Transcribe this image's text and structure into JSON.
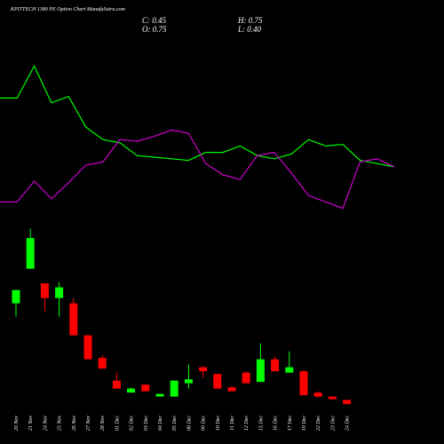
{
  "chart_data": {
    "type": "candlestick",
    "title": "KPITTECH 1380  PE Option Chart ManafaSutra.com",
    "ohlc_labels": {
      "close": "C: 0.45",
      "high": "H: 0.75",
      "open": "O: 0.75",
      "low": "L: 0.40"
    },
    "categories": [
      "20 Nov",
      "21 Nov",
      "24 Nov",
      "25 Nov",
      "26 Nov",
      "27 Nov",
      "28 Nov",
      "01 Dec",
      "02 Dec",
      "03 Dec",
      "04 Dec",
      "05 Dec",
      "08 Dec",
      "09 Dec",
      "10 Dec",
      "11 Dec",
      "12 Dec",
      "15 Dec",
      "16 Dec",
      "17 Dec",
      "19 Dec",
      "22 Dec",
      "23 Dec",
      "24 Dec"
    ],
    "open": [
      8.0,
      10.6,
      9.5,
      8.4,
      8.0,
      5.6,
      3.9,
      2.2,
      1.3,
      1.9,
      1.0,
      1.0,
      2.0,
      3.2,
      2.7,
      1.7,
      2.8,
      2.1,
      3.8,
      2.8,
      2.9,
      1.3,
      1.0,
      0.75
    ],
    "high": [
      9.0,
      13.6,
      9.5,
      9.6,
      8.4,
      5.6,
      4.1,
      2.8,
      1.7,
      1.9,
      1.2,
      2.2,
      3.4,
      3.3,
      2.7,
      1.8,
      2.9,
      5.0,
      4.0,
      4.4,
      3.0,
      1.4,
      1.0,
      0.75
    ],
    "low": [
      7.0,
      10.6,
      7.4,
      7.0,
      5.6,
      3.8,
      3.1,
      1.6,
      1.3,
      1.4,
      1.0,
      1.0,
      1.6,
      2.4,
      1.6,
      1.4,
      2.0,
      2.1,
      2.9,
      2.8,
      1.1,
      0.9,
      0.8,
      0.4
    ],
    "close": [
      9.0,
      12.9,
      8.4,
      9.2,
      5.6,
      3.8,
      3.1,
      1.6,
      1.6,
      1.4,
      1.2,
      2.2,
      2.3,
      2.9,
      1.6,
      1.4,
      2.0,
      3.8,
      2.9,
      3.2,
      1.1,
      1.0,
      0.8,
      0.45
    ],
    "up_color": "#00ff00",
    "down_color": "#ff0000",
    "ylim": [
      0,
      15
    ],
    "series": [
      {
        "name": "line-a",
        "color": "#00ff00",
        "axis": "y2",
        "values": [
          72,
          72,
          92,
          69,
          73,
          54,
          46,
          44,
          36,
          35,
          34,
          33,
          38,
          38,
          42,
          36,
          34,
          37,
          46,
          42,
          43,
          33,
          31,
          29
        ]
      },
      {
        "name": "line-b",
        "color": "#cc00cc",
        "axis": "y2",
        "values": [
          7,
          7,
          20,
          9,
          19,
          30,
          32,
          46,
          45,
          48,
          52,
          50,
          31,
          24,
          21,
          36,
          38,
          25,
          11,
          7,
          3,
          32,
          34,
          29
        ]
      }
    ],
    "y2lim": [
      0,
      100
    ]
  }
}
